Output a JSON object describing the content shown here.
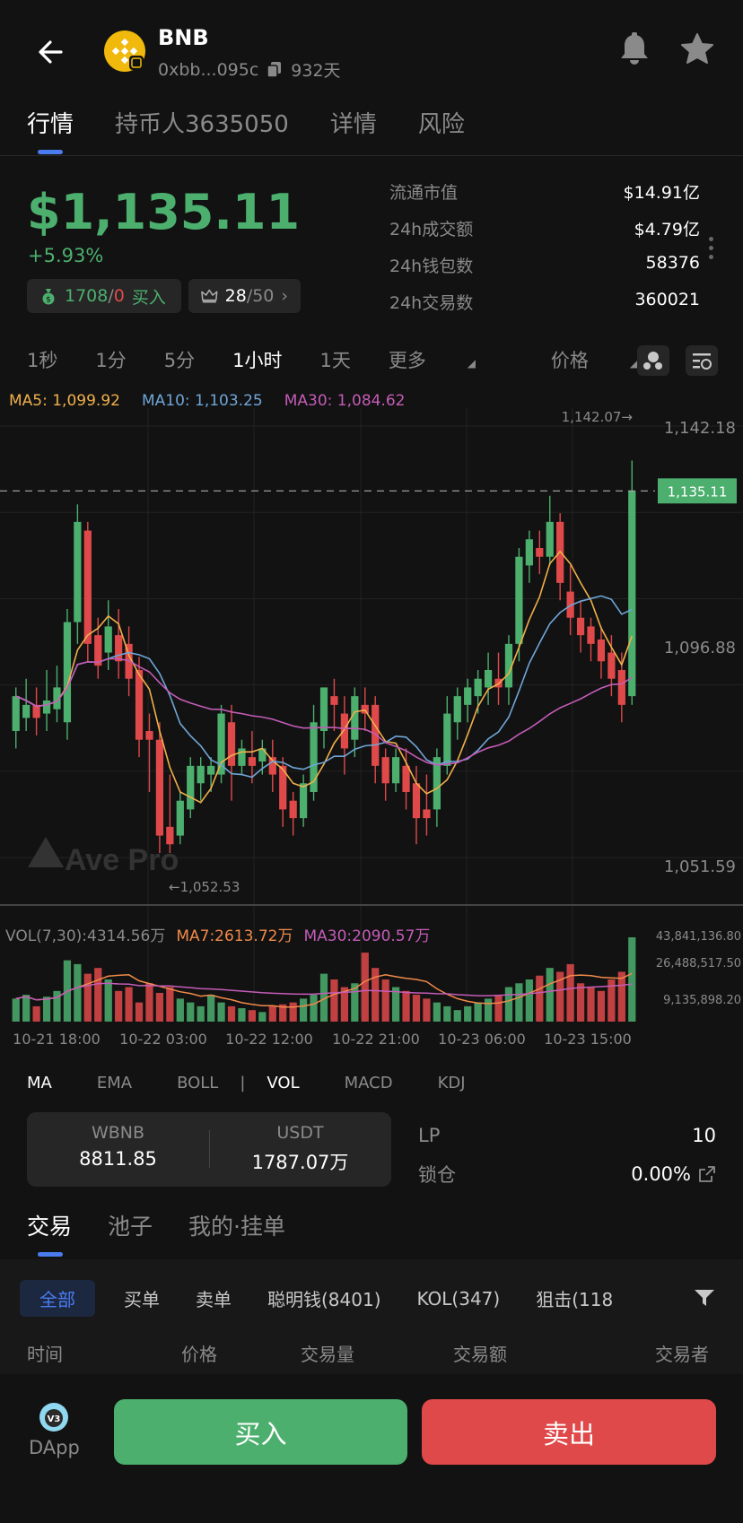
{
  "header": {
    "title": "BNB",
    "address": "0xbb...095c",
    "age": "932天"
  },
  "tabs": [
    {
      "label": "行情",
      "active": true
    },
    {
      "label": "持币人3635050",
      "active": false
    },
    {
      "label": "详情",
      "active": false
    },
    {
      "label": "风险",
      "active": false
    }
  ],
  "price": {
    "value": "$1,135.11",
    "change": "+5.93%",
    "buy_count": "1708",
    "sep": "/",
    "sell_count": "0",
    "buy_label": "买入",
    "rank": "28",
    "rank_total": "/50",
    "rank_arrow": "›"
  },
  "stats": [
    {
      "label": "流通市值",
      "value": "$14.91亿"
    },
    {
      "label": "24h成交额",
      "value": "$4.79亿"
    },
    {
      "label": "24h钱包数",
      "value": "58376"
    },
    {
      "label": "24h交易数",
      "value": "360021"
    }
  ],
  "intervals": [
    {
      "label": "1秒",
      "active": false
    },
    {
      "label": "1分",
      "active": false
    },
    {
      "label": "5分",
      "active": false
    },
    {
      "label": "1小时",
      "active": true
    },
    {
      "label": "1天",
      "active": false
    },
    {
      "label": "更多",
      "active": false
    },
    {
      "label": "价格",
      "active": false
    }
  ],
  "ma_legend": {
    "ma5": "MA5: 1,099.92",
    "ma10": "MA10: 1,103.25",
    "ma30": "MA30: 1,084.62"
  },
  "vol_legend": {
    "vol": "VOL(7,30):4314.56万",
    "ma7": "MA7:2613.72万",
    "ma30": "MA30:2090.57万"
  },
  "watermark": "Ave Pro",
  "chart_labels": {
    "high_marker": "1,142.07→",
    "low_marker": "←1,052.53",
    "current_price": "1,135.11",
    "price_ticks": [
      "1,142.18",
      "1,096.88",
      "1,051.59"
    ],
    "vol_ticks": [
      "43,841,136.80",
      "26,488,517.50",
      "9,135,898.20"
    ],
    "time_ticks": [
      "10-21 18:00",
      "10-22 03:00",
      "10-22 12:00",
      "10-22 21:00",
      "10-23 06:00",
      "10-23 15:00"
    ]
  },
  "colors": {
    "up": "#4caf6e",
    "down": "#e0494a",
    "ma5": "#f0b04a",
    "ma10": "#6fa6d8",
    "ma30": "#c45cb8",
    "ma7_vol": "#f08a4a",
    "accent": "#4a7cf0"
  },
  "chart_data": {
    "type": "candlestick",
    "ylim": [
      1045,
      1150
    ],
    "yticks": [
      1142.18,
      1096.88,
      1051.59
    ],
    "current": 1135.11,
    "high": 1142.07,
    "low": 1052.53,
    "candles": [
      [
        1080,
        1088,
        1076,
        1090
      ],
      [
        1083,
        1086,
        1080,
        1092
      ],
      [
        1086,
        1083,
        1079,
        1090
      ],
      [
        1084,
        1087,
        1080,
        1094
      ],
      [
        1085,
        1090,
        1082,
        1095
      ],
      [
        1082,
        1105,
        1078,
        1108
      ],
      [
        1105,
        1128,
        1100,
        1132
      ],
      [
        1126,
        1100,
        1096,
        1128
      ],
      [
        1102,
        1095,
        1092,
        1106
      ],
      [
        1098,
        1104,
        1094,
        1110
      ],
      [
        1102,
        1096,
        1092,
        1108
      ],
      [
        1100,
        1092,
        1088,
        1104
      ],
      [
        1094,
        1078,
        1074,
        1097
      ],
      [
        1080,
        1078,
        1066,
        1084
      ],
      [
        1078,
        1056,
        1052,
        1082
      ],
      [
        1058,
        1054,
        1052,
        1070
      ],
      [
        1056,
        1064,
        1054,
        1066
      ],
      [
        1062,
        1072,
        1060,
        1074
      ],
      [
        1068,
        1072,
        1064,
        1074
      ],
      [
        1070,
        1072,
        1066,
        1074
      ],
      [
        1070,
        1084,
        1068,
        1086
      ],
      [
        1082,
        1072,
        1064,
        1086
      ],
      [
        1072,
        1076,
        1070,
        1078
      ],
      [
        1074,
        1072,
        1068,
        1080
      ],
      [
        1073,
        1076,
        1070,
        1078
      ],
      [
        1074,
        1070,
        1066,
        1078
      ],
      [
        1072,
        1062,
        1058,
        1074
      ],
      [
        1064,
        1060,
        1056,
        1066
      ],
      [
        1060,
        1068,
        1058,
        1070
      ],
      [
        1066,
        1082,
        1064,
        1086
      ],
      [
        1080,
        1090,
        1076,
        1090
      ],
      [
        1088,
        1086,
        1080,
        1092
      ],
      [
        1084,
        1076,
        1070,
        1088
      ],
      [
        1078,
        1088,
        1074,
        1090
      ],
      [
        1086,
        1084,
        1080,
        1090
      ],
      [
        1086,
        1072,
        1068,
        1088
      ],
      [
        1074,
        1068,
        1064,
        1076
      ],
      [
        1068,
        1074,
        1066,
        1076
      ],
      [
        1072,
        1066,
        1062,
        1076
      ],
      [
        1068,
        1060,
        1054,
        1072
      ],
      [
        1062,
        1060,
        1056,
        1070
      ],
      [
        1062,
        1074,
        1058,
        1076
      ],
      [
        1072,
        1084,
        1070,
        1088
      ],
      [
        1082,
        1088,
        1078,
        1090
      ],
      [
        1086,
        1090,
        1082,
        1092
      ],
      [
        1088,
        1092,
        1084,
        1094
      ],
      [
        1090,
        1094,
        1086,
        1098
      ],
      [
        1092,
        1090,
        1086,
        1098
      ],
      [
        1090,
        1100,
        1086,
        1102
      ],
      [
        1100,
        1120,
        1096,
        1122
      ],
      [
        1118,
        1124,
        1114,
        1126
      ],
      [
        1122,
        1120,
        1116,
        1126
      ],
      [
        1120,
        1128,
        1118,
        1134
      ],
      [
        1128,
        1114,
        1110,
        1130
      ],
      [
        1112,
        1106,
        1102,
        1118
      ],
      [
        1106,
        1102,
        1098,
        1110
      ],
      [
        1104,
        1100,
        1096,
        1106
      ],
      [
        1101,
        1096,
        1092,
        1104
      ],
      [
        1098,
        1092,
        1088,
        1102
      ],
      [
        1094,
        1086,
        1082,
        1098
      ],
      [
        1088,
        1135.11,
        1086,
        1142.07
      ]
    ],
    "volumes": [
      12,
      14,
      8,
      13,
      16,
      32,
      30,
      25,
      28,
      22,
      16,
      18,
      10,
      20,
      15,
      18,
      12,
      10,
      8,
      14,
      10,
      8,
      7,
      6,
      5,
      8,
      9,
      10,
      12,
      14,
      25,
      22,
      18,
      20,
      36,
      28,
      22,
      18,
      16,
      14,
      12,
      10,
      8,
      6,
      8,
      10,
      12,
      14,
      18,
      20,
      22,
      24,
      28,
      26,
      30,
      20,
      18,
      16,
      22,
      26,
      44
    ]
  },
  "indicators": [
    {
      "label": "MA",
      "active": true
    },
    {
      "label": "EMA",
      "active": false
    },
    {
      "label": "BOLL",
      "active": false
    },
    {
      "label": "VOL",
      "active": true
    },
    {
      "label": "MACD",
      "active": false
    },
    {
      "label": "KDJ",
      "active": false
    }
  ],
  "indicator_sep": "|",
  "pool": {
    "left_label": "WBNB",
    "left_value": "8811.85",
    "right_label": "USDT",
    "right_value": "1787.07万",
    "lp_label": "LP",
    "lp_value": "10",
    "lock_label": "锁仓",
    "lock_value": "0.00%"
  },
  "tabs2": [
    {
      "label": "交易",
      "active": true
    },
    {
      "label": "池子",
      "active": false
    },
    {
      "label": "我的·挂单",
      "active": false
    }
  ],
  "filters": [
    {
      "label": "全部",
      "active": true
    },
    {
      "label": "买单",
      "active": false
    },
    {
      "label": "卖单",
      "active": false
    },
    {
      "label": "聪明钱(8401)",
      "active": false
    },
    {
      "label": "KOL(347)",
      "active": false
    },
    {
      "label": "狙击(118",
      "active": false
    }
  ],
  "columns": [
    "时间",
    "价格",
    "交易量",
    "交易额",
    "交易者"
  ],
  "bottom": {
    "dapp_label": "DApp",
    "dapp_badge": "V3",
    "buy": "买入",
    "sell": "卖出"
  }
}
